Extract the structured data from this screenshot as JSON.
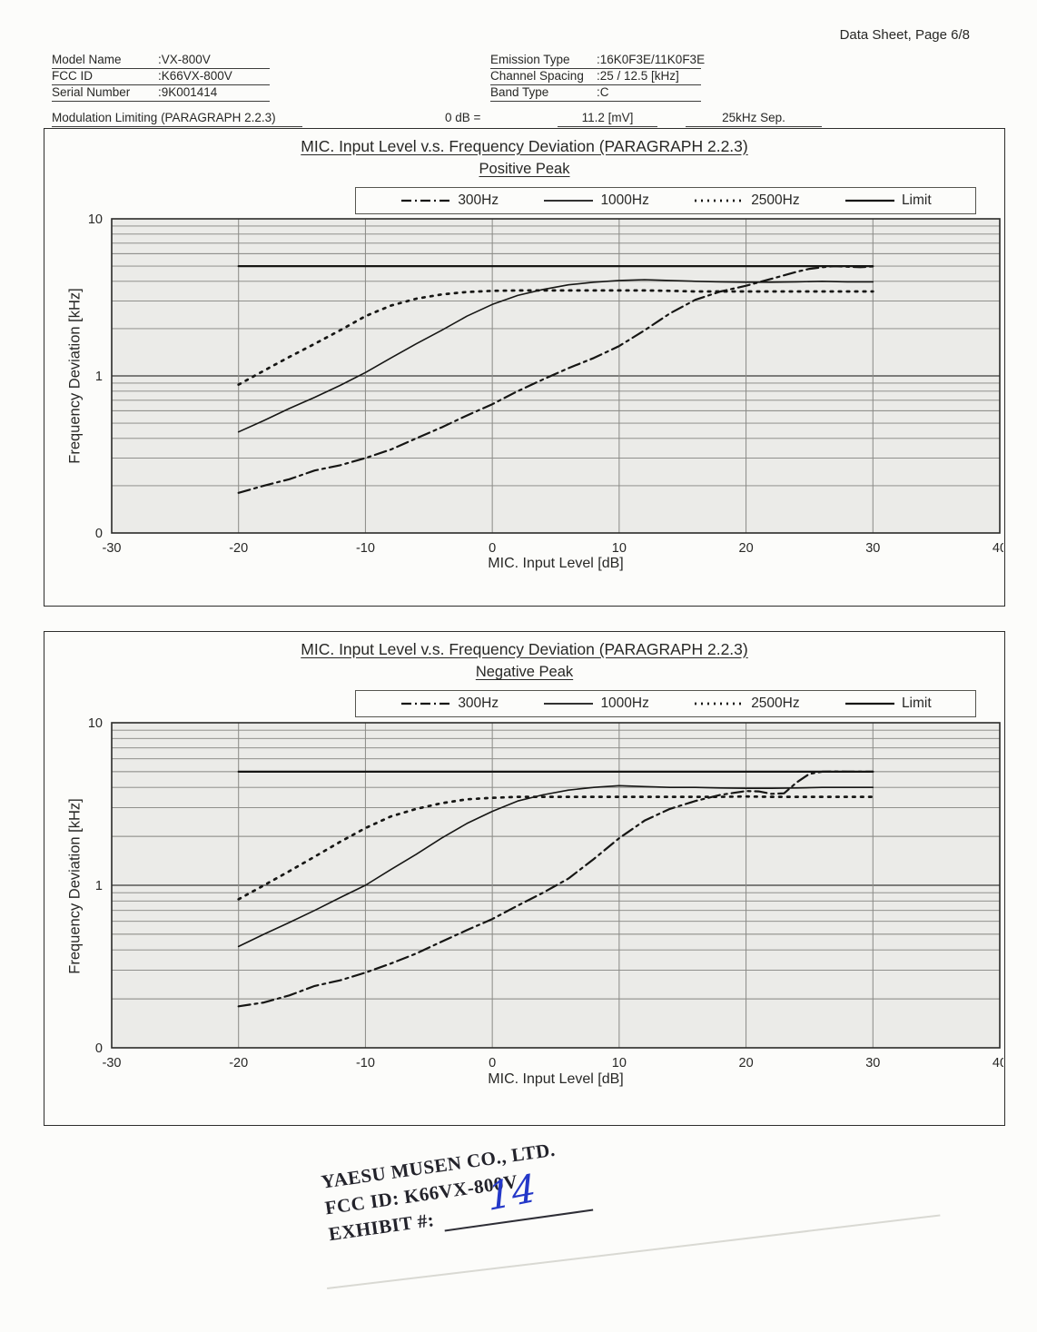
{
  "page": {
    "doc_label": "Data Sheet, Page 6/8"
  },
  "device_info": {
    "left": [
      {
        "label": "Model Name",
        "value": ":VX-800V"
      },
      {
        "label": "FCC ID",
        "value": ":K66VX-800V"
      },
      {
        "label": "Serial Number",
        "value": ":9K001414"
      }
    ],
    "right": [
      {
        "label": "Emission Type",
        "value": ":16K0F3E/11K0F3E"
      },
      {
        "label": "Channel Spacing",
        "value": ":25 / 12.5 [kHz]"
      },
      {
        "label": "Band Type",
        "value": ":C"
      }
    ]
  },
  "modulation_limiting": {
    "title": "Modulation Limiting (PARAGRAPH 2.2.3)",
    "reference": "0 dB =",
    "reference_value": "11.2 [mV]",
    "separation": "25kHz Sep."
  },
  "stamp": {
    "company": "YAESU MUSEN CO., LTD.",
    "fcc_id": "FCC ID: K66VX-800V",
    "exhibit_label": "EXHIBIT #:",
    "exhibit_number": "14"
  },
  "chart_data": [
    {
      "type": "line",
      "title": "MIC. Input Level v.s. Frequency Deviation (PARAGRAPH 2.2.3)",
      "subtitle": "Positive Peak",
      "xlabel": "MIC. Input Level [dB]",
      "ylabel": "Frequency Deviation [kHz]",
      "x_scale": "linear",
      "y_scale": "log",
      "xlim": [
        -30,
        40
      ],
      "ylim": [
        0.1,
        10
      ],
      "x_ticks": [
        -30,
        -20,
        -10,
        0,
        10,
        20,
        30,
        40
      ],
      "y_ticks": [
        {
          "value": 10,
          "label": "10"
        },
        {
          "value": 1,
          "label": "1"
        },
        {
          "value": 0.1,
          "label": "0"
        }
      ],
      "grid": true,
      "legend_position": "top",
      "series": [
        {
          "name": "300Hz",
          "style": "dashdot",
          "points": [
            [
              -20,
              0.18
            ],
            [
              -18,
              0.2
            ],
            [
              -16,
              0.22
            ],
            [
              -14,
              0.25
            ],
            [
              -12,
              0.27
            ],
            [
              -10,
              0.3
            ],
            [
              -8,
              0.34
            ],
            [
              -6,
              0.4
            ],
            [
              -4,
              0.47
            ],
            [
              -2,
              0.56
            ],
            [
              0,
              0.66
            ],
            [
              2,
              0.8
            ],
            [
              4,
              0.95
            ],
            [
              6,
              1.12
            ],
            [
              8,
              1.3
            ],
            [
              10,
              1.55
            ],
            [
              12,
              1.95
            ],
            [
              14,
              2.5
            ],
            [
              16,
              3.05
            ],
            [
              18,
              3.45
            ],
            [
              20,
              3.75
            ],
            [
              22,
              4.15
            ],
            [
              24,
              4.6
            ],
            [
              25,
              4.8
            ],
            [
              26,
              4.92
            ],
            [
              27,
              5.0
            ],
            [
              28,
              4.95
            ],
            [
              29,
              4.92
            ],
            [
              30,
              4.97
            ]
          ]
        },
        {
          "name": "1000Hz",
          "style": "solid",
          "points": [
            [
              -20,
              0.44
            ],
            [
              -18,
              0.52
            ],
            [
              -16,
              0.62
            ],
            [
              -14,
              0.73
            ],
            [
              -12,
              0.87
            ],
            [
              -10,
              1.05
            ],
            [
              -8,
              1.3
            ],
            [
              -6,
              1.6
            ],
            [
              -4,
              1.95
            ],
            [
              -2,
              2.4
            ],
            [
              0,
              2.85
            ],
            [
              2,
              3.25
            ],
            [
              4,
              3.55
            ],
            [
              6,
              3.8
            ],
            [
              8,
              3.95
            ],
            [
              10,
              4.05
            ],
            [
              12,
              4.1
            ],
            [
              14,
              4.05
            ],
            [
              16,
              4.0
            ],
            [
              18,
              3.97
            ],
            [
              20,
              3.95
            ],
            [
              22,
              3.95
            ],
            [
              24,
              3.97
            ],
            [
              26,
              4.0
            ],
            [
              28,
              3.97
            ],
            [
              30,
              3.97
            ]
          ]
        },
        {
          "name": "2500Hz",
          "style": "dotted",
          "points": [
            [
              -20,
              0.88
            ],
            [
              -18,
              1.08
            ],
            [
              -16,
              1.32
            ],
            [
              -14,
              1.6
            ],
            [
              -12,
              1.95
            ],
            [
              -10,
              2.4
            ],
            [
              -8,
              2.8
            ],
            [
              -6,
              3.1
            ],
            [
              -4,
              3.3
            ],
            [
              -2,
              3.42
            ],
            [
              0,
              3.48
            ],
            [
              2,
              3.5
            ],
            [
              4,
              3.5
            ],
            [
              6,
              3.5
            ],
            [
              8,
              3.5
            ],
            [
              10,
              3.5
            ],
            [
              12,
              3.5
            ],
            [
              14,
              3.48
            ],
            [
              16,
              3.45
            ],
            [
              18,
              3.45
            ],
            [
              20,
              3.45
            ],
            [
              22,
              3.45
            ],
            [
              24,
              3.45
            ],
            [
              26,
              3.45
            ],
            [
              28,
              3.45
            ],
            [
              30,
              3.45
            ]
          ]
        },
        {
          "name": "Limit",
          "style": "solid-thick",
          "points": [
            [
              -20,
              5
            ],
            [
              30,
              5
            ]
          ]
        }
      ]
    },
    {
      "type": "line",
      "title": "MIC. Input Level v.s. Frequency Deviation (PARAGRAPH 2.2.3)",
      "subtitle": "Negative Peak",
      "xlabel": "MIC. Input Level [dB]",
      "ylabel": "Frequency Deviation [kHz]",
      "x_scale": "linear",
      "y_scale": "log",
      "xlim": [
        -30,
        40
      ],
      "ylim": [
        0.1,
        10
      ],
      "x_ticks": [
        -30,
        -20,
        -10,
        0,
        10,
        20,
        30,
        40
      ],
      "y_ticks": [
        {
          "value": 10,
          "label": "10"
        },
        {
          "value": 1,
          "label": "1"
        },
        {
          "value": 0.1,
          "label": "0"
        }
      ],
      "grid": true,
      "legend_position": "top",
      "series": [
        {
          "name": "300Hz",
          "style": "dashdot",
          "points": [
            [
              -20,
              0.18
            ],
            [
              -18,
              0.19
            ],
            [
              -16,
              0.21
            ],
            [
              -14,
              0.24
            ],
            [
              -12,
              0.26
            ],
            [
              -10,
              0.29
            ],
            [
              -8,
              0.33
            ],
            [
              -6,
              0.38
            ],
            [
              -4,
              0.45
            ],
            [
              -2,
              0.53
            ],
            [
              0,
              0.62
            ],
            [
              2,
              0.75
            ],
            [
              4,
              0.9
            ],
            [
              6,
              1.1
            ],
            [
              8,
              1.45
            ],
            [
              10,
              1.95
            ],
            [
              12,
              2.5
            ],
            [
              14,
              2.95
            ],
            [
              16,
              3.3
            ],
            [
              18,
              3.6
            ],
            [
              20,
              3.8
            ],
            [
              21,
              3.78
            ],
            [
              22,
              3.65
            ],
            [
              23,
              3.68
            ],
            [
              24,
              4.3
            ],
            [
              25,
              4.85
            ],
            [
              26,
              5.0
            ],
            [
              27,
              5.02
            ],
            [
              28,
              5.0
            ],
            [
              29,
              5.0
            ],
            [
              30,
              5.0
            ]
          ]
        },
        {
          "name": "1000Hz",
          "style": "solid",
          "points": [
            [
              -20,
              0.42
            ],
            [
              -18,
              0.5
            ],
            [
              -16,
              0.59
            ],
            [
              -14,
              0.7
            ],
            [
              -12,
              0.84
            ],
            [
              -10,
              1.0
            ],
            [
              -8,
              1.25
            ],
            [
              -6,
              1.55
            ],
            [
              -4,
              1.95
            ],
            [
              -2,
              2.4
            ],
            [
              0,
              2.85
            ],
            [
              2,
              3.3
            ],
            [
              4,
              3.6
            ],
            [
              6,
              3.85
            ],
            [
              8,
              4.0
            ],
            [
              10,
              4.1
            ],
            [
              12,
              4.05
            ],
            [
              14,
              4.0
            ],
            [
              16,
              4.0
            ],
            [
              18,
              3.97
            ],
            [
              20,
              3.95
            ],
            [
              22,
              3.95
            ],
            [
              24,
              3.97
            ],
            [
              26,
              4.0
            ],
            [
              28,
              4.0
            ],
            [
              30,
              4.0
            ]
          ]
        },
        {
          "name": "2500Hz",
          "style": "dotted",
          "points": [
            [
              -20,
              0.82
            ],
            [
              -18,
              1.0
            ],
            [
              -16,
              1.22
            ],
            [
              -14,
              1.5
            ],
            [
              -12,
              1.85
            ],
            [
              -10,
              2.25
            ],
            [
              -8,
              2.65
            ],
            [
              -6,
              2.95
            ],
            [
              -4,
              3.2
            ],
            [
              -2,
              3.38
            ],
            [
              0,
              3.45
            ],
            [
              2,
              3.5
            ],
            [
              4,
              3.5
            ],
            [
              6,
              3.5
            ],
            [
              8,
              3.5
            ],
            [
              10,
              3.5
            ],
            [
              12,
              3.5
            ],
            [
              14,
              3.5
            ],
            [
              16,
              3.5
            ],
            [
              18,
              3.5
            ],
            [
              20,
              3.52
            ],
            [
              22,
              3.5
            ],
            [
              24,
              3.5
            ],
            [
              26,
              3.5
            ],
            [
              28,
              3.5
            ],
            [
              30,
              3.5
            ]
          ]
        },
        {
          "name": "Limit",
          "style": "solid-thick",
          "points": [
            [
              -20,
              5
            ],
            [
              30,
              5
            ]
          ]
        }
      ]
    }
  ]
}
